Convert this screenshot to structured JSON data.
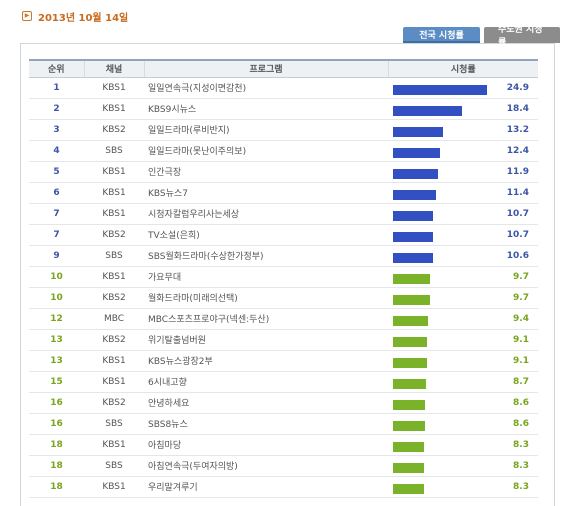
{
  "date": "2013년 10월 14일",
  "tabs": [
    {
      "label": "전국 시청률",
      "active": true
    },
    {
      "label": "수도권 시청률",
      "active": false
    }
  ],
  "headers": {
    "rank": "순위",
    "channel": "채널",
    "program": "프로그램",
    "rating": "시청률"
  },
  "rows": [
    {
      "rank": "1",
      "channel": "KBS1",
      "program": "일일연속극(지성이면감천)",
      "rating": "24.9",
      "value": 24.9
    },
    {
      "rank": "2",
      "channel": "KBS1",
      "program": "KBS9시뉴스",
      "rating": "18.4",
      "value": 18.4
    },
    {
      "rank": "3",
      "channel": "KBS2",
      "program": "일일드라마(루비반지)",
      "rating": "13.2",
      "value": 13.2
    },
    {
      "rank": "4",
      "channel": "SBS",
      "program": "일일드라마(못난이주의보)",
      "rating": "12.4",
      "value": 12.4
    },
    {
      "rank": "5",
      "channel": "KBS1",
      "program": "인간극장",
      "rating": "11.9",
      "value": 11.9
    },
    {
      "rank": "6",
      "channel": "KBS1",
      "program": "KBS뉴스7",
      "rating": "11.4",
      "value": 11.4
    },
    {
      "rank": "7",
      "channel": "KBS1",
      "program": "시청자칼럼우리사는세상",
      "rating": "10.7",
      "value": 10.7
    },
    {
      "rank": "7",
      "channel": "KBS2",
      "program": "TV소설(은희)",
      "rating": "10.7",
      "value": 10.7
    },
    {
      "rank": "9",
      "channel": "SBS",
      "program": "SBS월화드라마(수상한가정부)",
      "rating": "10.6",
      "value": 10.6
    },
    {
      "rank": "10",
      "channel": "KBS1",
      "program": "가요무대",
      "rating": "9.7",
      "value": 9.7
    },
    {
      "rank": "10",
      "channel": "KBS2",
      "program": "월화드라마(미래의선택)",
      "rating": "9.7",
      "value": 9.7
    },
    {
      "rank": "12",
      "channel": "MBC",
      "program": "MBC스포츠프로야구(넥센:두산)",
      "rating": "9.4",
      "value": 9.4
    },
    {
      "rank": "13",
      "channel": "KBS2",
      "program": "위기탈출넘버원",
      "rating": "9.1",
      "value": 9.1
    },
    {
      "rank": "13",
      "channel": "KBS1",
      "program": "KBS뉴스광장2부",
      "rating": "9.1",
      "value": 9.1
    },
    {
      "rank": "15",
      "channel": "KBS1",
      "program": "6시내고향",
      "rating": "8.7",
      "value": 8.7
    },
    {
      "rank": "16",
      "channel": "KBS2",
      "program": "안녕하세요",
      "rating": "8.6",
      "value": 8.6
    },
    {
      "rank": "16",
      "channel": "SBS",
      "program": "SBS8뉴스",
      "rating": "8.6",
      "value": 8.6
    },
    {
      "rank": "18",
      "channel": "KBS1",
      "program": "아침마당",
      "rating": "8.3",
      "value": 8.3
    },
    {
      "rank": "18",
      "channel": "SBS",
      "program": "아침연속극(두여자의방)",
      "rating": "8.3",
      "value": 8.3
    },
    {
      "rank": "18",
      "channel": "KBS1",
      "program": "우리말겨루기",
      "rating": "8.3",
      "value": 8.3
    }
  ],
  "colors": {
    "top_bar": "#3350c2",
    "other_bar": "#7ab329",
    "top_text": "#3b55a8",
    "other_text": "#77a51b",
    "date": "#c96a1e"
  }
}
